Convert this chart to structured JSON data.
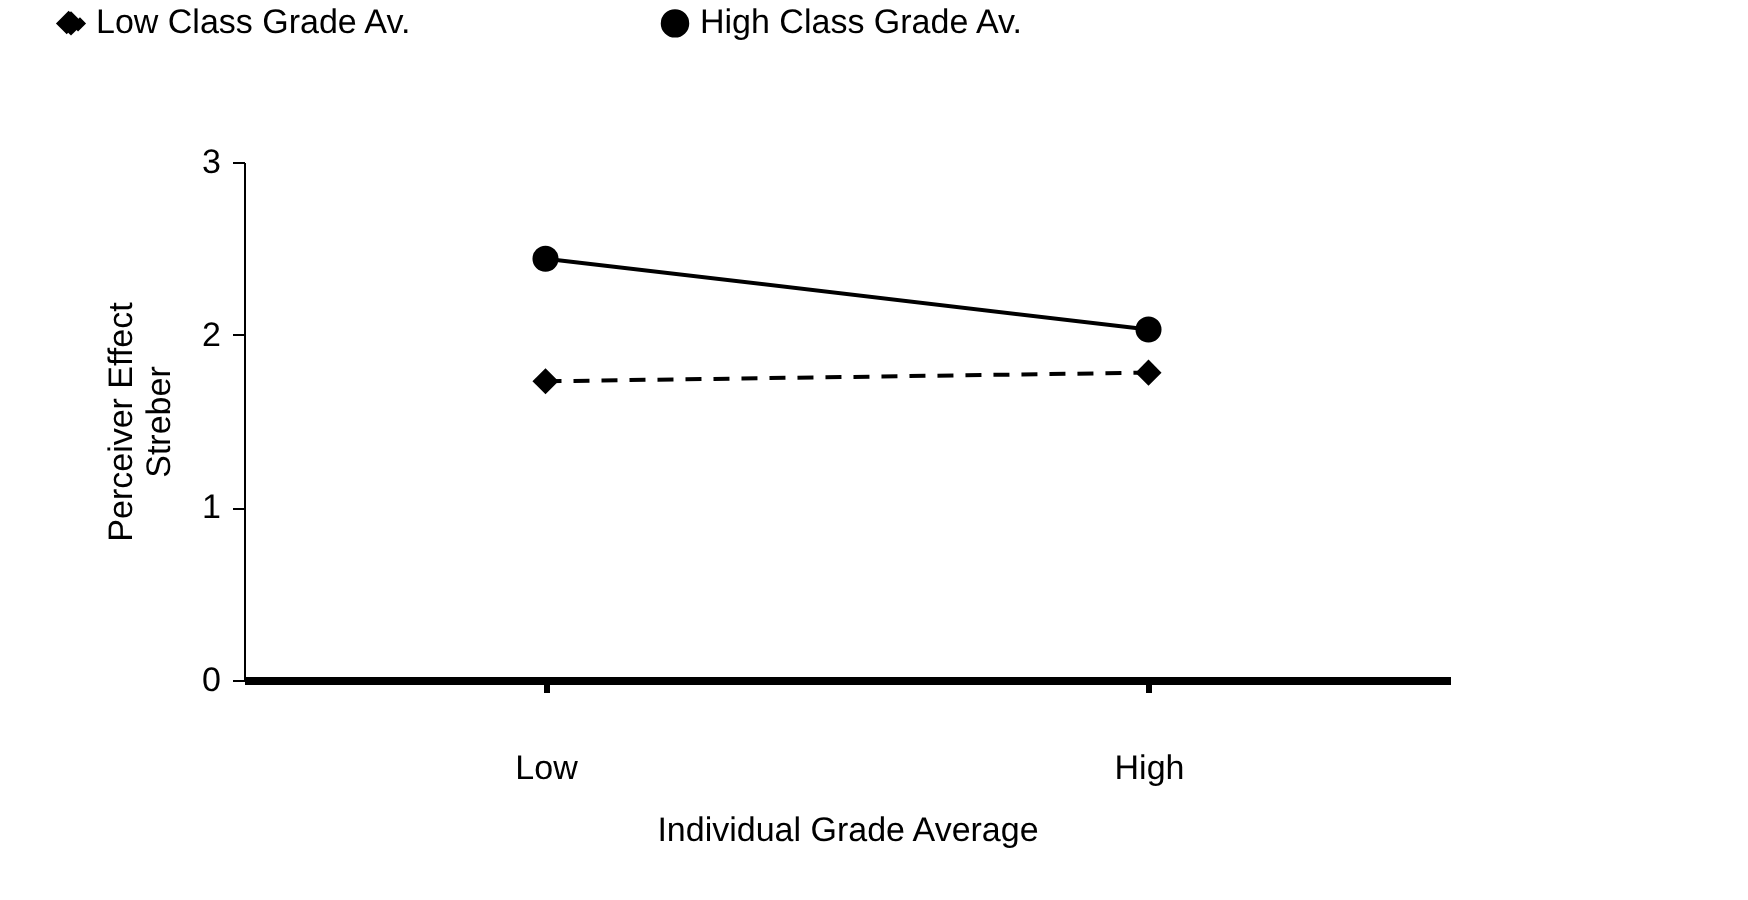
{
  "chart_data": {
    "type": "line",
    "xlabel": "Individual Grade Average",
    "ylabel": "Perceiver Effect\nStreber",
    "categories": [
      "Low",
      "High"
    ],
    "series": [
      {
        "name": "Low Class Grade Av.",
        "color": "#000000",
        "values": [
          1.73,
          1.78
        ],
        "marker": "diamond",
        "line_style": "dashed"
      },
      {
        "name": "High Class Grade Av.",
        "color": "#000000",
        "values": [
          2.44,
          2.03
        ],
        "marker": "circle",
        "line_style": "solid"
      }
    ],
    "ylim": [
      0,
      3
    ],
    "yticks": [
      0,
      1,
      2,
      3
    ],
    "grid": false,
    "legend": "top"
  }
}
